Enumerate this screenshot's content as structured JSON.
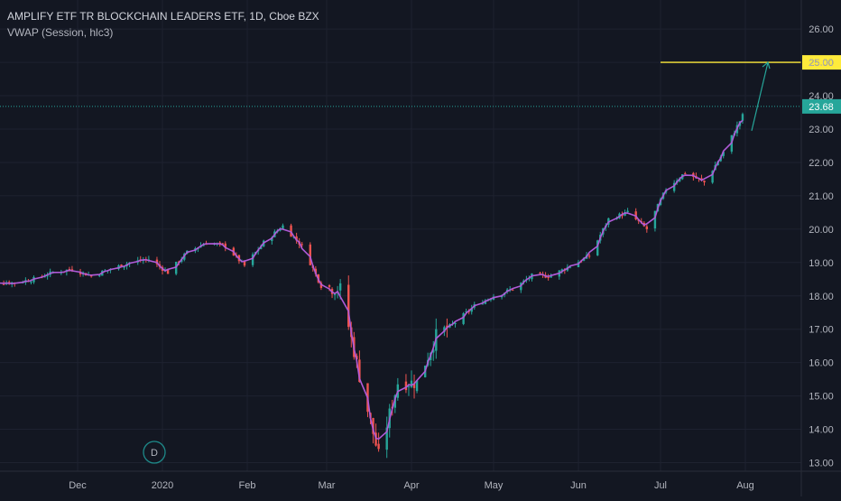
{
  "legend": {
    "title": "AMPLIFY ETF TR BLOCKCHAIN LEADERS ETF, 1D, Cboe BZX",
    "indicator": "VWAP (Session, hlc3)"
  },
  "colors": {
    "background": "#131722",
    "grid": "#1e2230",
    "up": "#26a69a",
    "down": "#ef5350",
    "vwap": "#b05ad8",
    "last_price_line": "#26a69a",
    "target_line": "#ffeb3b",
    "axis_text": "#b2b5be"
  },
  "price_axis": {
    "ticks": [
      "26.00",
      "25.00",
      "24.00",
      "23.00",
      "22.00",
      "21.00",
      "20.00",
      "19.00",
      "18.00",
      "17.00",
      "16.00",
      "15.00",
      "14.00",
      "13.00"
    ],
    "last_price_label": "23.68",
    "target_label": "25.00"
  },
  "time_axis": {
    "ticks": [
      "Dec",
      "2020",
      "Feb",
      "Mar",
      "Apr",
      "May",
      "Jun",
      "Jul",
      "Aug"
    ]
  },
  "marker": {
    "label": "D"
  },
  "chart_data": {
    "type": "line",
    "title": "AMPLIFY ETF TR BLOCKCHAIN LEADERS ETF, 1D, Cboe BZX",
    "xlabel": "",
    "ylabel": "",
    "ylim": [
      12.9,
      26.6
    ],
    "x_ticks": [
      "Dec",
      "2020",
      "Feb",
      "Mar",
      "Apr",
      "May",
      "Jun",
      "Jul",
      "Aug"
    ],
    "y_ticks": [
      26,
      25,
      24,
      23,
      22,
      21,
      20,
      19,
      18,
      17,
      16,
      15,
      14,
      13
    ],
    "last_price": 23.68,
    "target_price": 25.0,
    "grid": true,
    "series": [
      {
        "name": "VWAP (Session, hlc3)",
        "x": [
          "2019-11-08",
          "2019-11-15",
          "2019-11-22",
          "2019-11-29",
          "2019-12-06",
          "2019-12-13",
          "2019-12-20",
          "2019-12-27",
          "2020-01-03",
          "2020-01-10",
          "2020-01-17",
          "2020-01-24",
          "2020-01-31",
          "2020-02-07",
          "2020-02-14",
          "2020-02-21",
          "2020-02-28",
          "2020-03-06",
          "2020-03-13",
          "2020-03-20",
          "2020-03-27",
          "2020-04-03",
          "2020-04-10",
          "2020-04-17",
          "2020-04-24",
          "2020-05-01",
          "2020-05-08",
          "2020-05-15",
          "2020-05-22",
          "2020-05-29",
          "2020-06-05",
          "2020-06-12",
          "2020-06-19",
          "2020-06-26",
          "2020-07-03",
          "2020-07-10",
          "2020-07-17",
          "2020-07-24",
          "2020-07-31"
        ],
        "values": [
          18.4,
          18.5,
          18.7,
          18.8,
          18.6,
          18.8,
          19.0,
          19.1,
          18.7,
          19.3,
          19.6,
          19.5,
          18.9,
          19.6,
          20.1,
          19.5,
          18.3,
          18.2,
          15.6,
          13.2,
          15.4,
          15.4,
          16.8,
          17.2,
          17.7,
          18.0,
          18.2,
          18.6,
          18.6,
          18.9,
          19.2,
          20.3,
          20.5,
          20.0,
          21.2,
          21.7,
          21.4,
          22.3,
          23.4
        ]
      }
    ]
  }
}
